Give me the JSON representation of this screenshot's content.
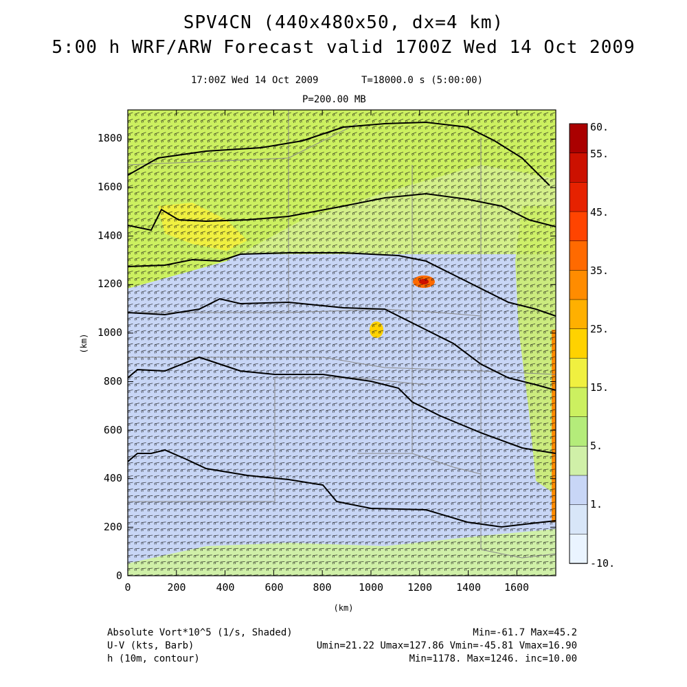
{
  "header": {
    "title1": "SPV4CN (440x480x50, dx=4 km)",
    "title2": "5:00 h WRF/ARW Forecast valid 1700Z Wed 14 Oct 2009",
    "valid_time": "17:00Z Wed 14 Oct 2009",
    "sim_time": "T=18000.0 s (5:00:00)",
    "level": "P=200.00 MB"
  },
  "axes": {
    "x_label": "(km)",
    "y_label": "(km)",
    "x_ticks": [
      "0",
      "200",
      "400",
      "600",
      "800",
      "1000",
      "1200",
      "1400",
      "1600"
    ],
    "y_ticks": [
      "0",
      "200",
      "400",
      "600",
      "800",
      "1000",
      "1200",
      "1400",
      "1600",
      "1800"
    ],
    "x_range": [
      0,
      1760
    ],
    "y_range": [
      0,
      1920
    ]
  },
  "colorbar": {
    "labels": [
      "60.",
      "55.",
      "45.",
      "35.",
      "25.",
      "15.",
      "5.",
      "1.",
      "-10."
    ],
    "colors": [
      "#aa0000",
      "#cc1100",
      "#e62200",
      "#ff4400",
      "#ff6a00",
      "#ff8c00",
      "#ffb000",
      "#ffd200",
      "#f0f040",
      "#ccf060",
      "#b4ec7a",
      "#d0f0a8",
      "#c8d6f6",
      "#d8e6f8",
      "#eaf4ff"
    ]
  },
  "footer": {
    "line1_left": "Absolute Vort*10^5 (1/s, Shaded)",
    "line1_right": "Min=-61.7 Max=45.2",
    "line2_left": "U-V (kts, Barb)",
    "line2_right": "Umin=21.22 Umax=127.86 Vmin=-45.81 Vmax=16.90",
    "line3_left": "h (10m, contour)",
    "line3_right": "Min=1178. Max=1246. inc=10.00"
  },
  "colors": {
    "contour": "#000000",
    "barb": "#111111",
    "border": "#888888",
    "low_vort": "#c8d6f6",
    "mid_vort": "#ccf060",
    "high_vort": "#ff6a00"
  }
}
